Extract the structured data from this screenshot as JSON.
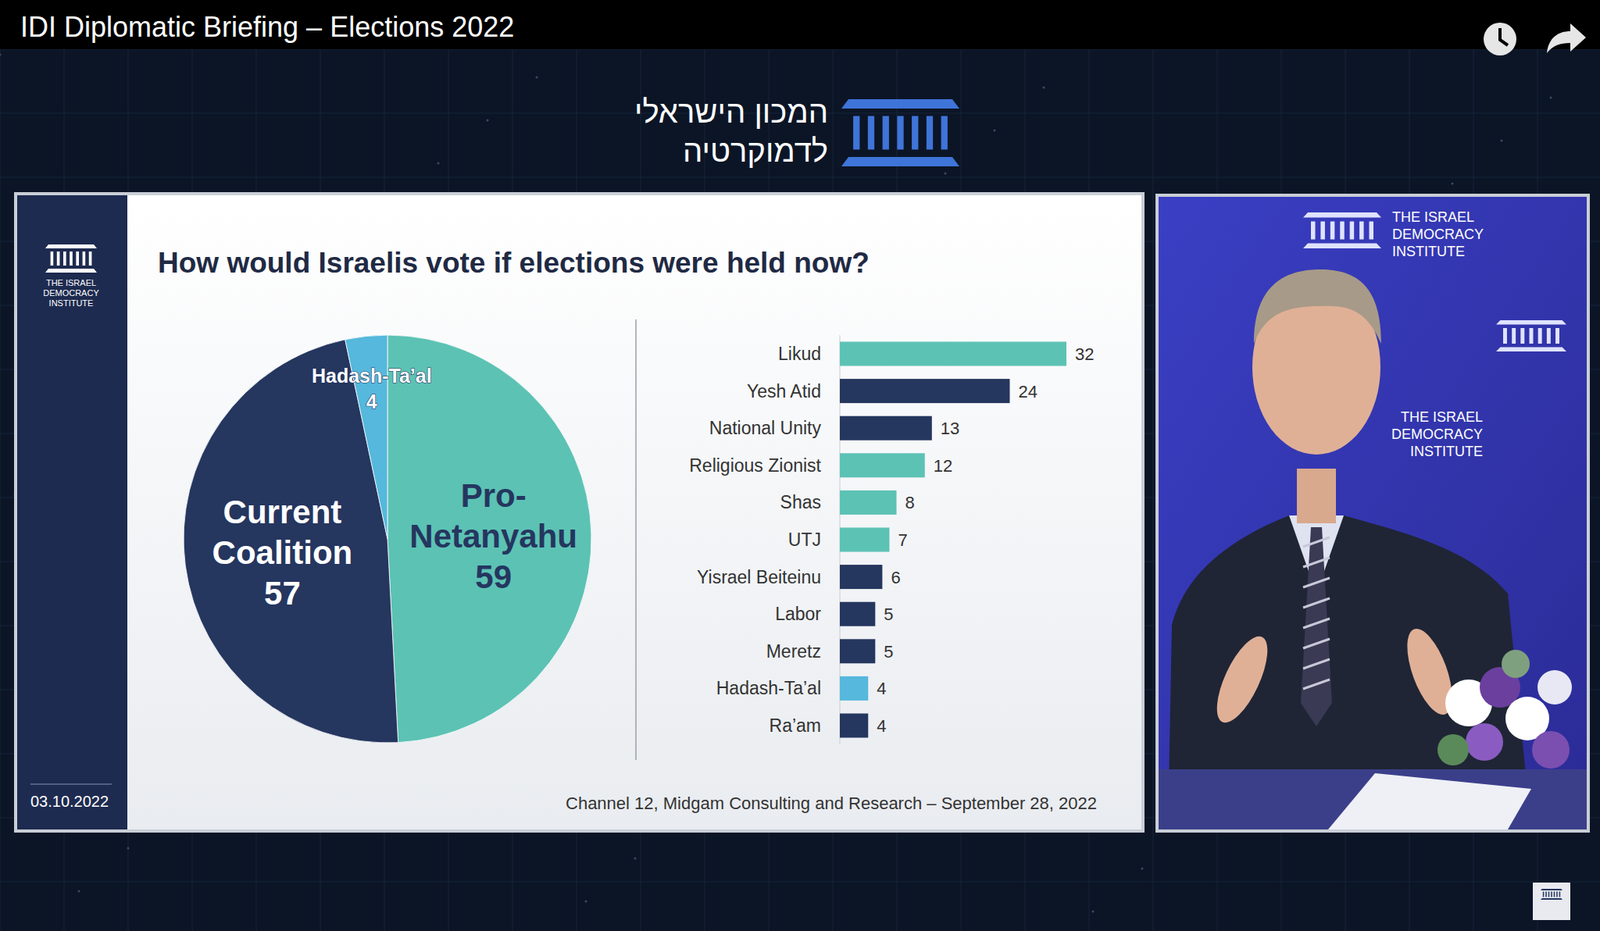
{
  "video": {
    "title": "IDI Diplomatic Briefing – Elections 2022"
  },
  "logo": {
    "hebrew": [
      "המכון הישראלי",
      "לדמוקרטיה"
    ],
    "english": [
      "THE ISRAEL",
      "DEMOCRACY",
      "INSTITUTE"
    ]
  },
  "slide": {
    "title": "How would Israelis vote if elections were held now?",
    "date": "03.10.2022",
    "source": "Channel 12, Midgam Consulting and Research – September 28, 2022"
  },
  "chart_data": [
    {
      "type": "pie",
      "categories": [
        "Pro-Netanyahu",
        "Current Coalition",
        "Hadash-Ta’al"
      ],
      "values": [
        59,
        57,
        4
      ],
      "colors": [
        "#5cc2b4",
        "#25365f",
        "#55b8dc"
      ],
      "data_labels": true
    },
    {
      "type": "bar",
      "orientation": "horizontal",
      "categories": [
        "Likud",
        "Yesh Atid",
        "National Unity",
        "Religious Zionist",
        "Shas",
        "UTJ",
        "Yisrael Beiteinu",
        "Labor",
        "Meretz",
        "Hadash-Ta’al",
        "Ra’am"
      ],
      "values": [
        32,
        24,
        13,
        12,
        8,
        7,
        6,
        5,
        5,
        4,
        4
      ],
      "colors": [
        "#5cc2b4",
        "#25365f",
        "#25365f",
        "#5cc2b4",
        "#5cc2b4",
        "#5cc2b4",
        "#25365f",
        "#25365f",
        "#25365f",
        "#55b8dc",
        "#25365f"
      ],
      "xlim": [
        0,
        32
      ],
      "data_labels": true,
      "tick_labels": false
    }
  ]
}
